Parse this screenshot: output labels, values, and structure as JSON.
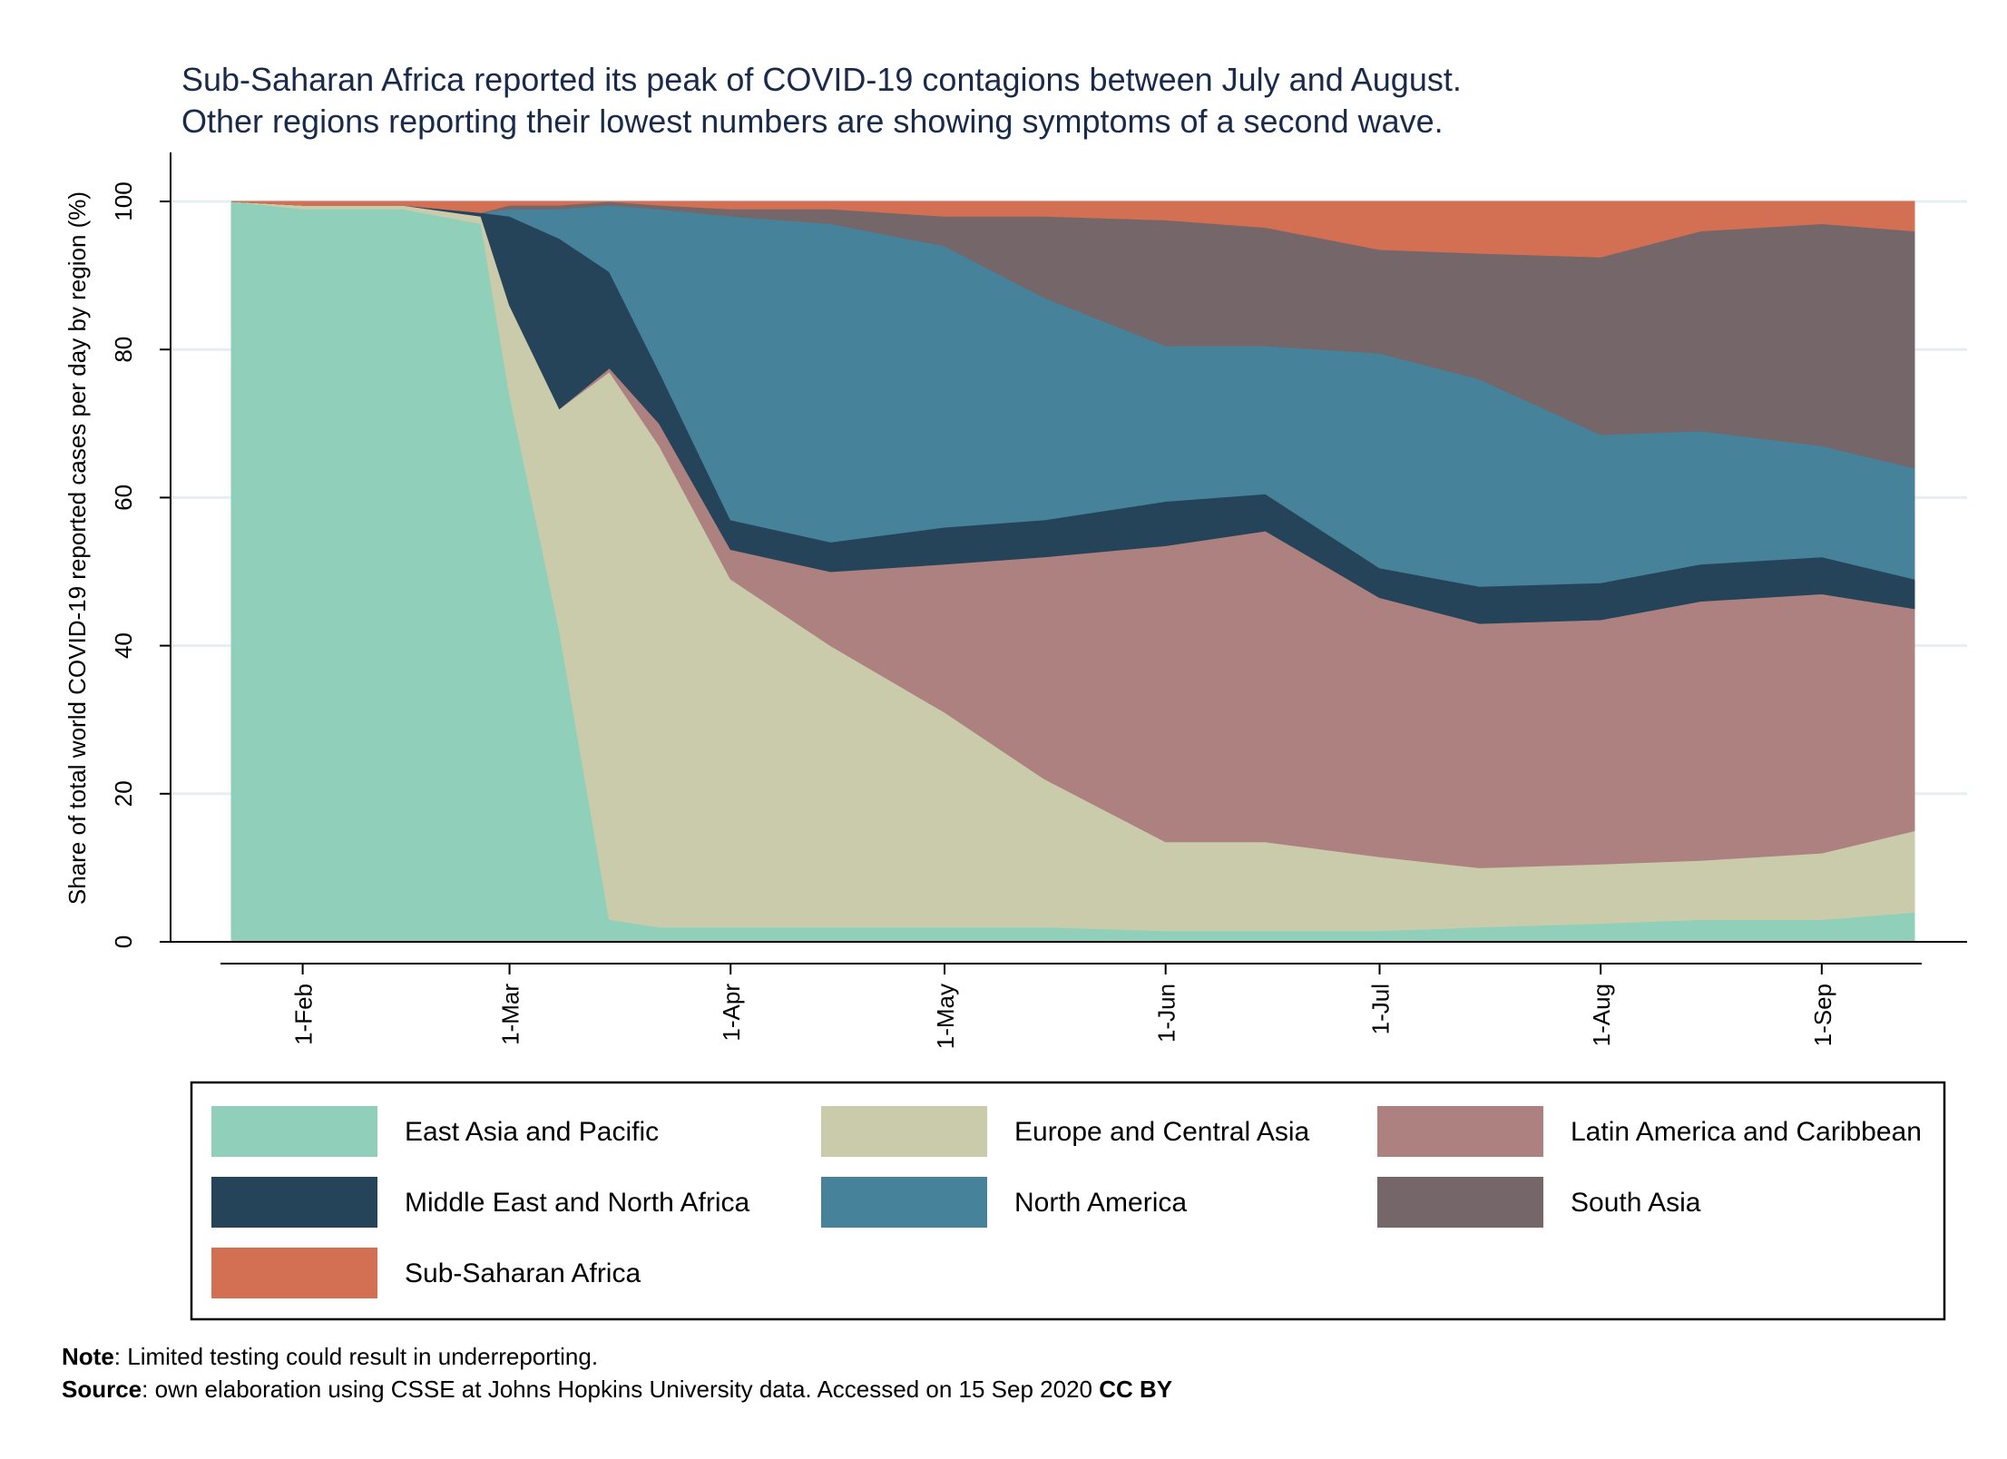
{
  "chart_data": {
    "type": "area",
    "title": [
      "Sub-Saharan Africa reported its peak of COVID-19 contagions between July and August.",
      "Other regions reporting their lowest numbers are showing symptoms of a second wave."
    ],
    "xlabel": "",
    "ylabel": "Share of total world COVID-19 reported cases per day by region (%)",
    "ylim": [
      0,
      100
    ],
    "yticks": [
      "0",
      "20",
      "40",
      "60",
      "80",
      "100"
    ],
    "xticks": [
      "1-Feb",
      "1-Mar",
      "1-Apr",
      "1-May",
      "1-Jun",
      "1-Jul",
      "1-Aug",
      "1-Sep"
    ],
    "x": [
      "22-Jan",
      "1-Feb",
      "15-Feb",
      "26-Feb",
      "1-Mar",
      "8-Mar",
      "15-Mar",
      "22-Mar",
      "1-Apr",
      "15-Apr",
      "1-May",
      "15-May",
      "1-Jun",
      "15-Jun",
      "1-Jul",
      "15-Jul",
      "1-Aug",
      "15-Aug",
      "1-Sep",
      "14-Sep"
    ],
    "series": [
      {
        "name": "East Asia and Pacific",
        "color": "#90cfba",
        "values": [
          100,
          99,
          99,
          97,
          74,
          42,
          3,
          2,
          2,
          2,
          2,
          2,
          1.5,
          1.5,
          1.5,
          2,
          2.5,
          3,
          3,
          4
        ]
      },
      {
        "name": "Europe and Central Asia",
        "color": "#cacbab",
        "values": [
          0,
          0.5,
          0.5,
          1,
          12,
          30,
          74,
          65,
          47,
          38,
          29,
          20,
          12,
          12,
          10,
          8,
          8,
          8,
          9,
          11
        ]
      },
      {
        "name": "Latin America and Caribbean",
        "color": "#ae8181",
        "values": [
          0,
          0,
          0,
          0,
          0,
          0,
          0.5,
          3,
          4,
          10,
          20,
          30,
          40,
          42,
          35,
          33,
          33,
          35,
          35,
          30
        ]
      },
      {
        "name": "Middle East and North Africa",
        "color": "#264459",
        "values": [
          0,
          0,
          0,
          0.5,
          12,
          23,
          13,
          7,
          4,
          4,
          5,
          5,
          6,
          5,
          4,
          5,
          5,
          5,
          5,
          4
        ]
      },
      {
        "name": "North America",
        "color": "#46829a",
        "values": [
          0,
          0,
          0,
          0,
          1,
          4,
          9,
          22,
          41,
          43,
          38,
          30,
          21,
          20,
          29,
          28,
          20,
          18,
          15,
          15
        ]
      },
      {
        "name": "South Asia",
        "color": "#75666a",
        "values": [
          0,
          0,
          0,
          0,
          0.5,
          0.5,
          0.5,
          0.5,
          1,
          2,
          4,
          11,
          17,
          16,
          14,
          17,
          24,
          27,
          30,
          32
        ]
      },
      {
        "name": "Sub-Saharan Africa",
        "color": "#d36f52",
        "values": [
          0,
          0.5,
          0.5,
          1.5,
          0.5,
          0.5,
          0.5,
          0.5,
          1,
          1,
          2,
          2,
          2.5,
          3.5,
          6.5,
          7,
          7.5,
          4,
          3,
          4
        ]
      }
    ],
    "legend": "bottom"
  },
  "note": {
    "label": "Note",
    "text": ": Limited testing could result in underreporting."
  },
  "source": {
    "label": "Source",
    "text": ": own elaboration using CSSE at Johns Hopkins University data.  Accessed on 15 Sep 2020 ",
    "license": "CC BY"
  }
}
